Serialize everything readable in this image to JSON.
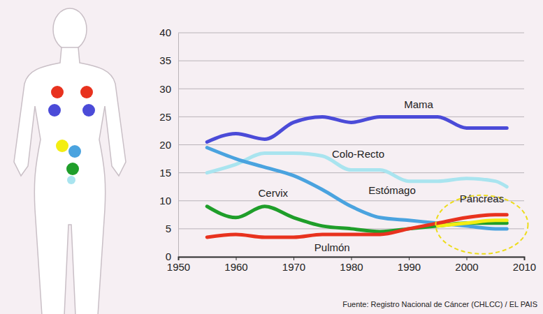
{
  "chart_data": {
    "type": "line",
    "annotations": [
      "Fuente: Registro Nacional de Cáncer (CHLCC) / EL PAIS"
    ],
    "x": [
      1955,
      1960,
      1965,
      1970,
      1975,
      1980,
      1985,
      1990,
      1995,
      2000,
      2005,
      2007
    ],
    "series": [
      {
        "name": "Mama",
        "color": "#4b4bd8",
        "values": [
          20.5,
          22,
          21,
          24,
          25,
          24,
          25,
          25,
          25,
          23,
          23,
          23
        ]
      },
      {
        "name": "Colo-Recto",
        "color": "#a9e4ef",
        "values": [
          15,
          16.5,
          18.5,
          18.5,
          18,
          15.5,
          15.5,
          13.5,
          13.5,
          14,
          13.5,
          12.5
        ]
      },
      {
        "name": "Estómago",
        "color": "#4aa3df",
        "values": [
          19.5,
          17.5,
          16,
          14.5,
          12,
          9,
          7,
          6.5,
          6,
          5.5,
          5,
          5
        ]
      },
      {
        "name": "Cervix",
        "color": "#1f9e2a",
        "values": [
          9,
          7,
          9,
          7,
          5.5,
          5,
          4.5,
          5,
          5.5,
          6,
          6,
          6
        ]
      },
      {
        "name": "Páncreas",
        "color": "#f3ee12",
        "values": [
          null,
          null,
          null,
          null,
          null,
          null,
          null,
          null,
          5.5,
          6,
          6.5,
          6.5
        ]
      },
      {
        "name": "Pulmón",
        "color": "#e8321e",
        "values": [
          3.5,
          4,
          3.5,
          3.5,
          4,
          4,
          4,
          5,
          6,
          7,
          7.5,
          7.5
        ]
      }
    ],
    "xlim": [
      1950,
      2010
    ],
    "xticks": [
      1950,
      1960,
      1970,
      1980,
      1990,
      2000,
      2010
    ],
    "ylim": [
      0,
      40
    ],
    "yticks": [
      0,
      5,
      10,
      15,
      20,
      25,
      30,
      35,
      40
    ],
    "grid": true
  }
}
